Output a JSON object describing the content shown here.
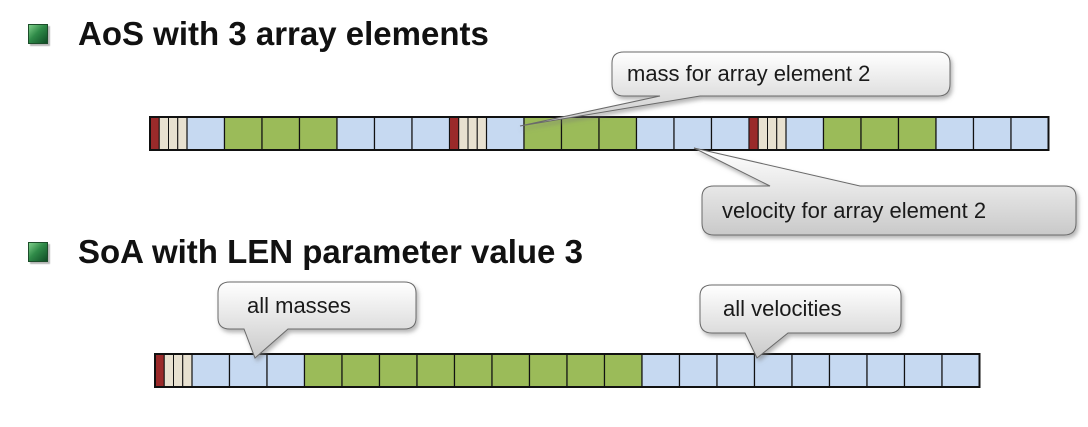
{
  "bullets": [
    {
      "text": "AoS with 3 array elements"
    },
    {
      "text": "SoA with LEN parameter value 3"
    }
  ],
  "callouts": {
    "mass_aos": "mass for array element 2",
    "velocity_aos": "velocity for array element 2",
    "masses_soa": "all masses",
    "velocities_soa": "all velocities"
  },
  "colors": {
    "header": "#9a2a2a",
    "mass": "#9bbb59",
    "velocity": "#c6d9f1",
    "stripe": "#e8e1d0",
    "border": "#111111"
  },
  "aos_layout": {
    "elements": 3,
    "sequence": [
      "header",
      "velocity",
      "mass",
      "mass",
      "mass",
      "velocity",
      "velocity",
      "velocity"
    ]
  },
  "soa_layout": {
    "sequence": [
      "header",
      "velocity",
      "velocity",
      "velocity",
      "mass",
      "mass",
      "mass",
      "mass",
      "mass",
      "mass",
      "mass",
      "mass",
      "mass",
      "velocity",
      "velocity",
      "velocity",
      "velocity",
      "velocity",
      "velocity",
      "velocity",
      "velocity",
      "velocity"
    ]
  }
}
